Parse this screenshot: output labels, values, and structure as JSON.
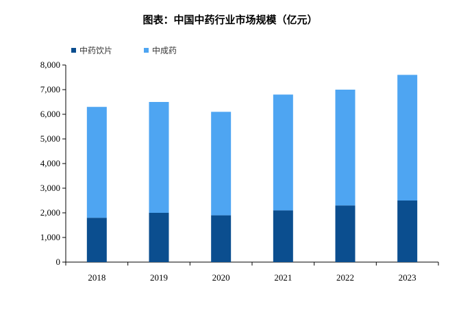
{
  "chart_data": {
    "type": "bar",
    "stacked": true,
    "title": "图表：中国中药行业市场规模（亿元）",
    "xlabel": "",
    "ylabel": "",
    "categories": [
      "2018",
      "2019",
      "2020",
      "2021",
      "2022",
      "2023"
    ],
    "series": [
      {
        "name": "中药饮片",
        "color": "#0b4e8f",
        "values": [
          1800,
          2000,
          1900,
          2100,
          2300,
          2500
        ]
      },
      {
        "name": "中成药",
        "color": "#4ea5f2",
        "values": [
          4500,
          4500,
          4200,
          4700,
          4700,
          5100
        ]
      }
    ],
    "ylim": [
      0,
      8000
    ],
    "yticks": [
      "0",
      "1,000",
      "2,000",
      "3,000",
      "4,000",
      "5,000",
      "6,000",
      "7,000",
      "8,000"
    ],
    "grid": false,
    "legend_position": "top-left"
  }
}
